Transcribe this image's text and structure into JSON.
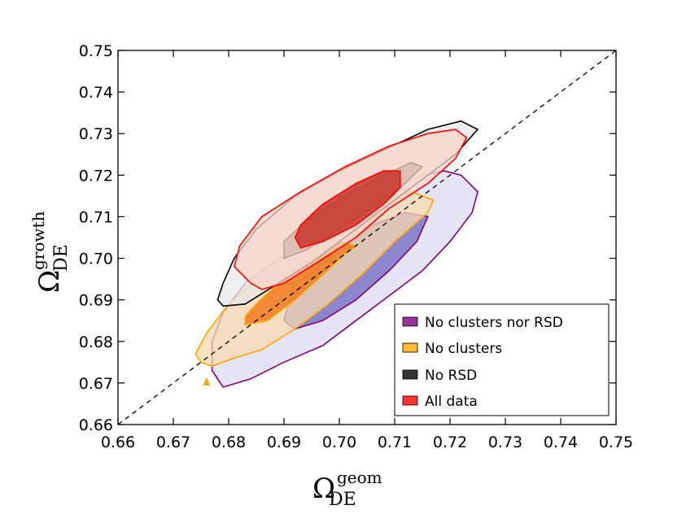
{
  "chart_data": {
    "type": "contour",
    "xlabel": {
      "symbol": "Ω",
      "sub": "DE",
      "sup": "geom"
    },
    "ylabel": {
      "symbol": "Ω",
      "sub": "DE",
      "sup": "growth"
    },
    "xlim": [
      0.66,
      0.75
    ],
    "ylim": [
      0.66,
      0.75
    ],
    "x_ticks": [
      "0.66",
      "0.67",
      "0.68",
      "0.69",
      "0.70",
      "0.71",
      "0.72",
      "0.73",
      "0.74",
      "0.75"
    ],
    "y_ticks": [
      "0.66",
      "0.67",
      "0.68",
      "0.69",
      "0.70",
      "0.71",
      "0.72",
      "0.73",
      "0.74",
      "0.75"
    ],
    "reference_line": {
      "style": "dashed",
      "x": [
        0.66,
        0.75
      ],
      "y": [
        0.66,
        0.75
      ]
    },
    "legend_position": "lower-right",
    "series": [
      {
        "name": "No clusters nor RSD",
        "color": "#800080",
        "fill_outer": "#dedcf2",
        "fill_inner": "#7b75c4",
        "outer": [
          [
            0.679,
            0.669
          ],
          [
            0.684,
            0.671
          ],
          [
            0.69,
            0.675
          ],
          [
            0.697,
            0.679
          ],
          [
            0.703,
            0.685
          ],
          [
            0.709,
            0.691
          ],
          [
            0.715,
            0.697
          ],
          [
            0.72,
            0.704
          ],
          [
            0.724,
            0.711
          ],
          [
            0.725,
            0.716
          ],
          [
            0.722,
            0.72
          ],
          [
            0.719,
            0.721
          ],
          [
            0.715,
            0.72
          ],
          [
            0.71,
            0.717
          ],
          [
            0.703,
            0.712
          ],
          [
            0.696,
            0.706
          ],
          [
            0.689,
            0.7
          ],
          [
            0.683,
            0.694
          ],
          [
            0.679,
            0.687
          ],
          [
            0.677,
            0.68
          ],
          [
            0.677,
            0.673
          ]
        ],
        "inner": [
          [
            0.692,
            0.683
          ],
          [
            0.697,
            0.685
          ],
          [
            0.703,
            0.69
          ],
          [
            0.709,
            0.697
          ],
          [
            0.714,
            0.704
          ],
          [
            0.716,
            0.71
          ],
          [
            0.712,
            0.711
          ],
          [
            0.706,
            0.708
          ],
          [
            0.699,
            0.702
          ],
          [
            0.694,
            0.696
          ],
          [
            0.691,
            0.69
          ],
          [
            0.69,
            0.685
          ]
        ]
      },
      {
        "name": "No clusters",
        "color": "#ffa500",
        "fill_outer": "#f8d9ad",
        "fill_inner": "#f07a1f",
        "outer": [
          [
            0.677,
            0.674
          ],
          [
            0.681,
            0.676
          ],
          [
            0.686,
            0.678
          ],
          [
            0.692,
            0.683
          ],
          [
            0.698,
            0.689
          ],
          [
            0.704,
            0.696
          ],
          [
            0.71,
            0.704
          ],
          [
            0.716,
            0.711
          ],
          [
            0.717,
            0.714
          ],
          [
            0.713,
            0.716
          ],
          [
            0.707,
            0.713
          ],
          [
            0.7,
            0.709
          ],
          [
            0.693,
            0.703
          ],
          [
            0.686,
            0.696
          ],
          [
            0.68,
            0.689
          ],
          [
            0.676,
            0.682
          ],
          [
            0.674,
            0.677
          ],
          [
            0.675,
            0.675
          ]
        ],
        "inner": [
          [
            0.683,
            0.684
          ],
          [
            0.687,
            0.685
          ],
          [
            0.692,
            0.69
          ],
          [
            0.697,
            0.696
          ],
          [
            0.701,
            0.701
          ],
          [
            0.703,
            0.703
          ],
          [
            0.7,
            0.704
          ],
          [
            0.695,
            0.7
          ],
          [
            0.689,
            0.694
          ],
          [
            0.685,
            0.689
          ],
          [
            0.683,
            0.686
          ]
        ],
        "island": [
          [
            0.6755,
            0.6695
          ],
          [
            0.6765,
            0.6695
          ],
          [
            0.676,
            0.6712
          ]
        ]
      },
      {
        "name": "No RSD",
        "color": "#000000",
        "fill_outer": "#e8e8e8",
        "fill_inner": "#807070",
        "outer": [
          [
            0.679,
            0.6885
          ],
          [
            0.683,
            0.689
          ],
          [
            0.689,
            0.694
          ],
          [
            0.695,
            0.699
          ],
          [
            0.701,
            0.705
          ],
          [
            0.708,
            0.712
          ],
          [
            0.715,
            0.719
          ],
          [
            0.721,
            0.725
          ],
          [
            0.725,
            0.731
          ],
          [
            0.722,
            0.733
          ],
          [
            0.716,
            0.731
          ],
          [
            0.708,
            0.726
          ],
          [
            0.7,
            0.721
          ],
          [
            0.692,
            0.715
          ],
          [
            0.685,
            0.707
          ],
          [
            0.681,
            0.7
          ],
          [
            0.679,
            0.694
          ],
          [
            0.678,
            0.69
          ]
        ],
        "inner": [
          [
            0.69,
            0.7
          ],
          [
            0.694,
            0.702
          ],
          [
            0.7,
            0.707
          ],
          [
            0.706,
            0.712
          ],
          [
            0.711,
            0.717
          ],
          [
            0.715,
            0.722
          ],
          [
            0.713,
            0.723
          ],
          [
            0.708,
            0.72
          ],
          [
            0.701,
            0.715
          ],
          [
            0.694,
            0.709
          ],
          [
            0.69,
            0.704
          ],
          [
            0.69,
            0.702
          ]
        ]
      },
      {
        "name": "All data",
        "color": "#ff0000",
        "fill_outer": "#f8d4c8",
        "fill_inner": "#c73228",
        "outer": [
          [
            0.686,
            0.6925
          ],
          [
            0.69,
            0.694
          ],
          [
            0.696,
            0.699
          ],
          [
            0.703,
            0.705
          ],
          [
            0.709,
            0.712
          ],
          [
            0.716,
            0.718
          ],
          [
            0.721,
            0.724
          ],
          [
            0.723,
            0.729
          ],
          [
            0.721,
            0.731
          ],
          [
            0.716,
            0.73
          ],
          [
            0.709,
            0.727
          ],
          [
            0.701,
            0.722
          ],
          [
            0.693,
            0.716
          ],
          [
            0.686,
            0.71
          ],
          [
            0.682,
            0.703
          ],
          [
            0.681,
            0.698
          ],
          [
            0.684,
            0.694
          ]
        ],
        "inner": [
          [
            0.693,
            0.7025
          ],
          [
            0.697,
            0.704
          ],
          [
            0.703,
            0.708
          ],
          [
            0.708,
            0.713
          ],
          [
            0.711,
            0.717
          ],
          [
            0.711,
            0.721
          ],
          [
            0.708,
            0.721
          ],
          [
            0.703,
            0.718
          ],
          [
            0.697,
            0.713
          ],
          [
            0.693,
            0.708
          ],
          [
            0.692,
            0.705
          ]
        ]
      }
    ]
  }
}
